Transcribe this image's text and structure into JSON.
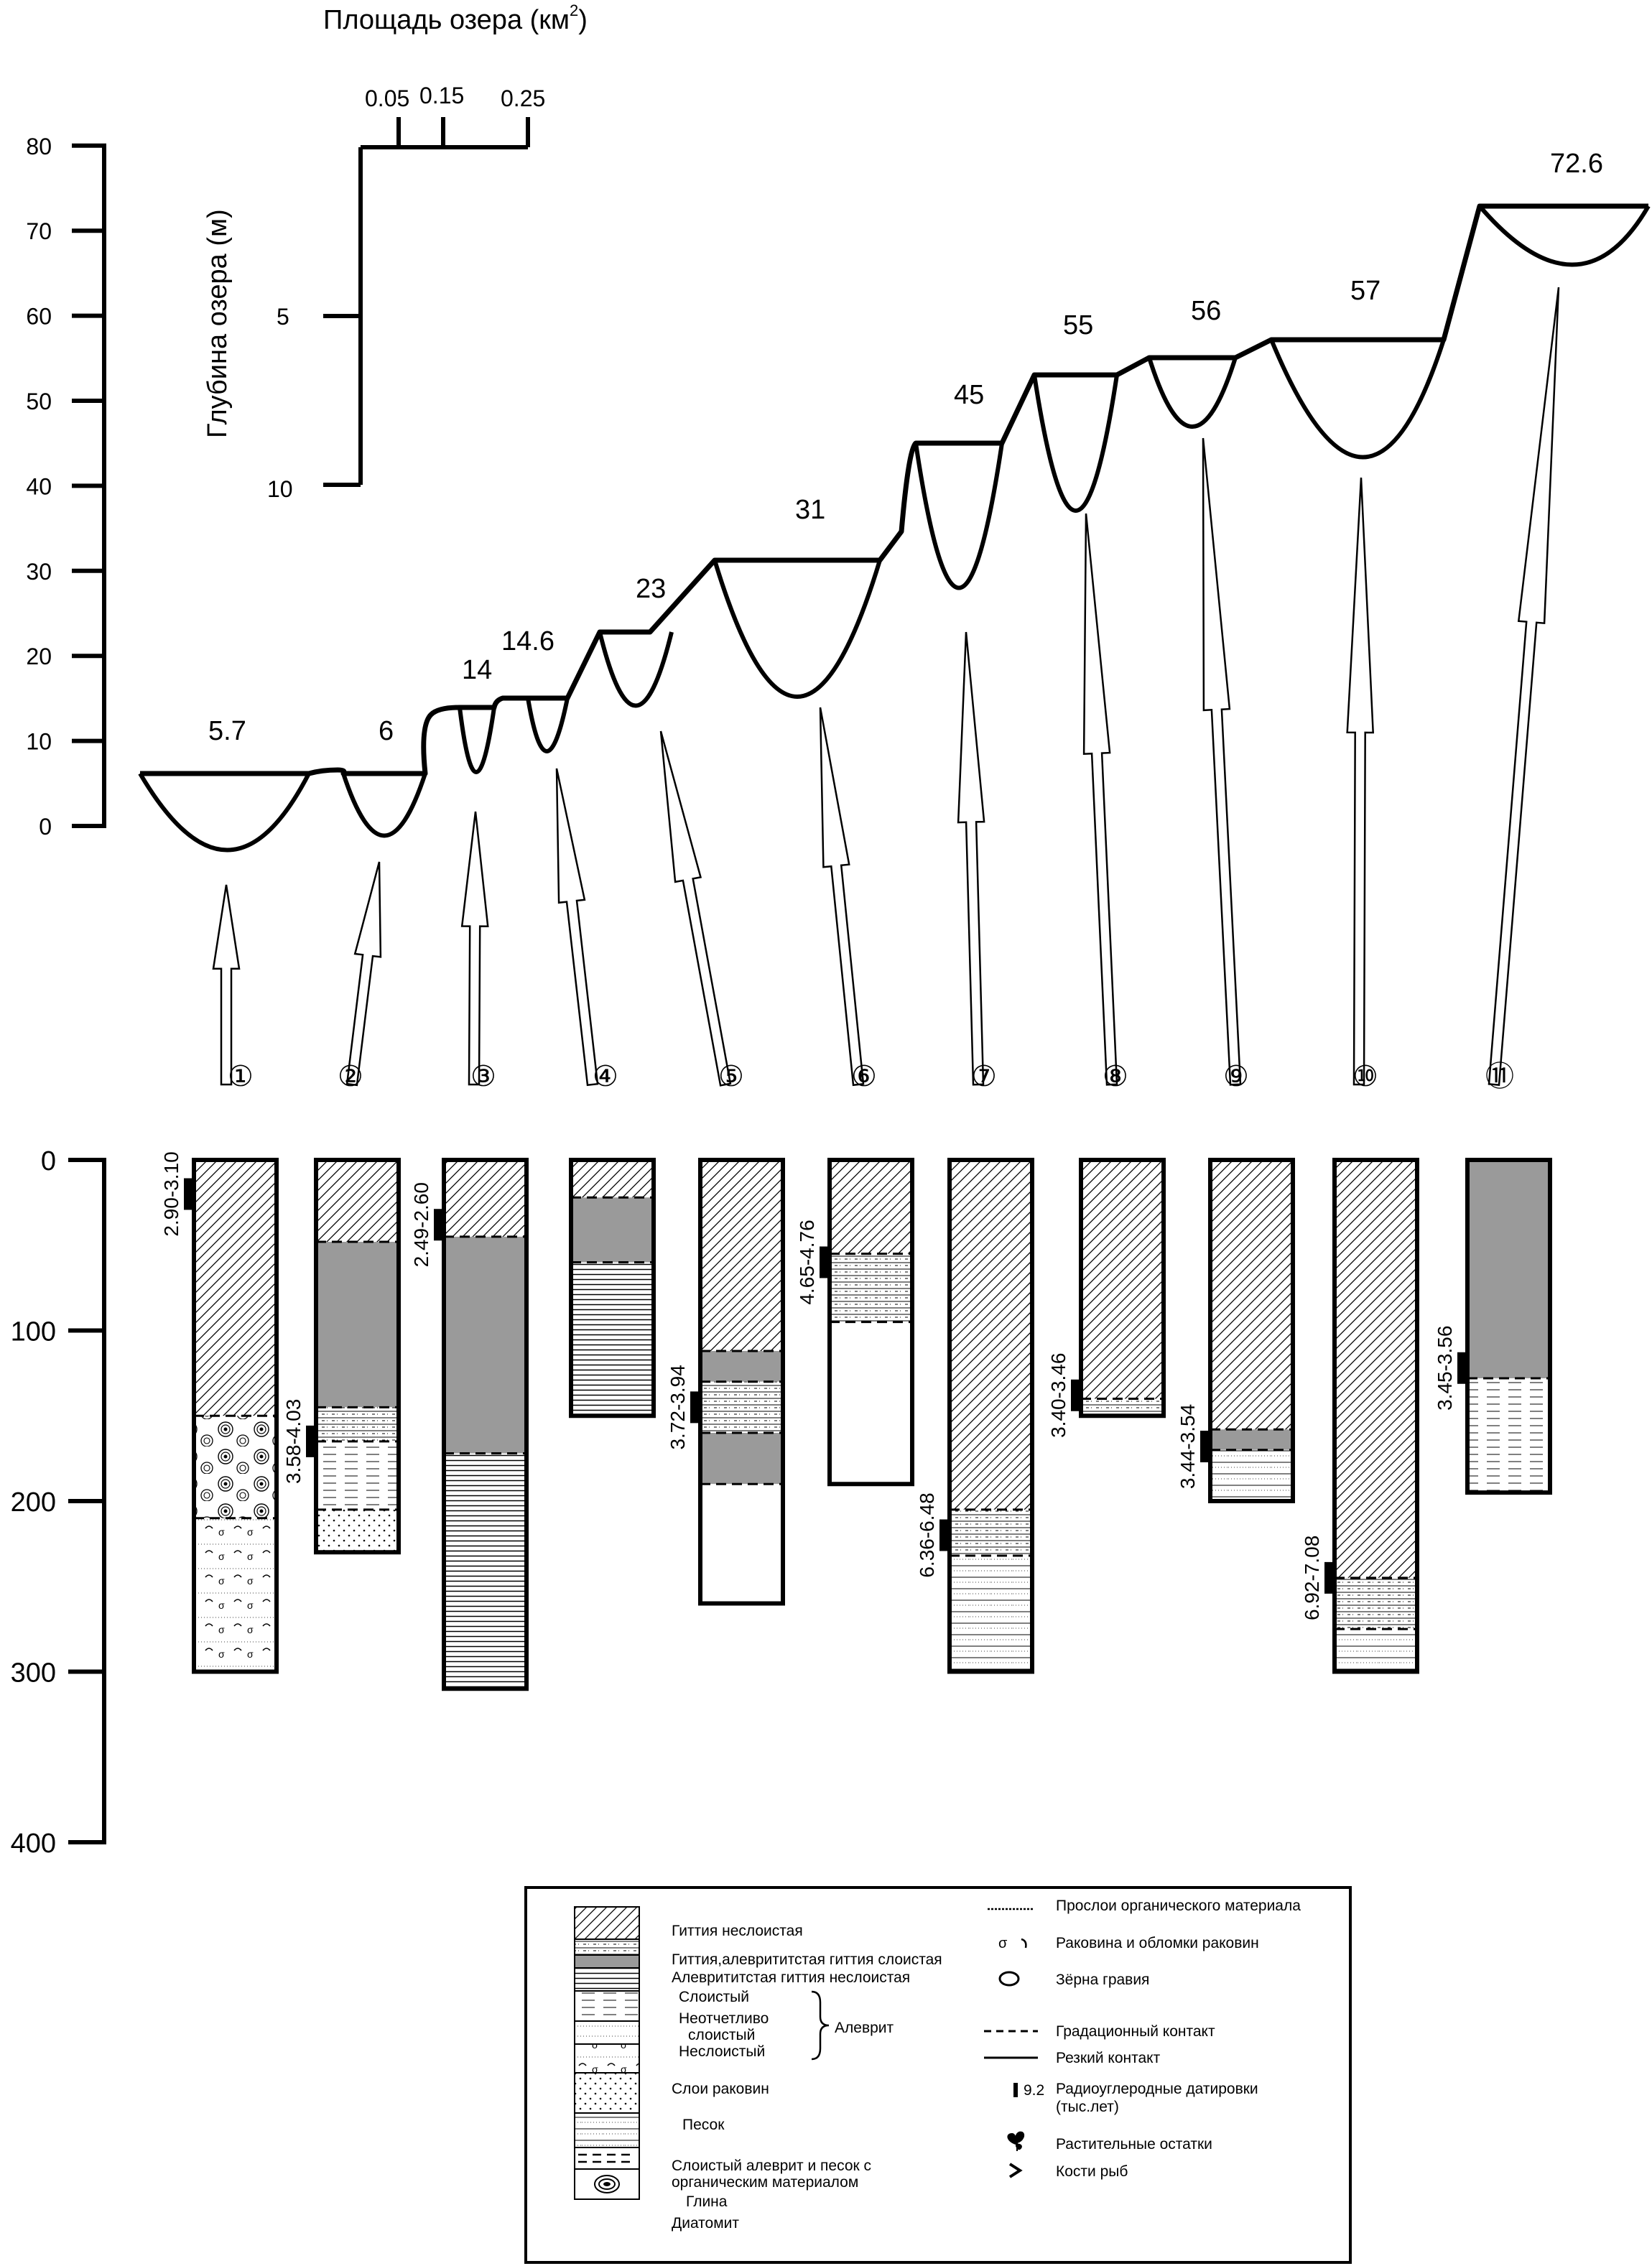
{
  "area_axis": {
    "title": "Площадь озера (км",
    "title_sup": "2",
    "title_end": ")",
    "ticks": [
      "0.05",
      "0.15",
      "0.25"
    ]
  },
  "depth_axis": {
    "title": "Глубина озера (м)",
    "ticks": [
      "5",
      "10"
    ]
  },
  "elevation_axis": {
    "ticks": [
      "0",
      "10",
      "20",
      "30",
      "40",
      "50",
      "60",
      "70",
      "80"
    ]
  },
  "core_axis": {
    "ticks": [
      "0",
      "100",
      "200",
      "300",
      "400"
    ]
  },
  "lakes": [
    {
      "num": "1",
      "elevation": "5.7",
      "depth_level": 0
    },
    {
      "num": "2",
      "elevation": "6",
      "depth_level": 1
    },
    {
      "num": "3",
      "elevation": "14",
      "depth_level": 2
    },
    {
      "num": "4",
      "elevation": "14.6",
      "depth_level": 3
    },
    {
      "num": "5",
      "elevation": "23",
      "depth_level": 4
    },
    {
      "num": "6",
      "elevation": "31",
      "depth_level": 5
    },
    {
      "num": "7",
      "elevation": "45",
      "depth_level": 6
    },
    {
      "num": "8",
      "elevation": "55",
      "depth_level": 7
    },
    {
      "num": "9",
      "elevation": "56",
      "depth_level": 8
    },
    {
      "num": "10",
      "elevation": "57",
      "depth_level": 9
    },
    {
      "num": "11",
      "elevation": "72.6",
      "depth_level": 10
    }
  ],
  "core_numbers": [
    "①",
    "②",
    "③",
    "④",
    "⑤",
    "⑥",
    "⑦",
    "⑧",
    "⑨",
    "⑩",
    "⑪"
  ],
  "cores": [
    {
      "id": "1",
      "base_cm": 300,
      "dates": [
        {
          "text": "2.90-3.10",
          "depth_cm": 20
        }
      ]
    },
    {
      "id": "2",
      "base_cm": 230,
      "dates": [
        {
          "text": "3.58-4.03",
          "depth_cm": 165
        }
      ]
    },
    {
      "id": "3",
      "base_cm": 310,
      "dates": [
        {
          "text": "2.49-2.60",
          "depth_cm": 38
        }
      ]
    },
    {
      "id": "4",
      "base_cm": 150,
      "dates": []
    },
    {
      "id": "5",
      "base_cm": 260,
      "dates": [
        {
          "text": "3.72-3.94",
          "depth_cm": 145
        }
      ]
    },
    {
      "id": "6",
      "base_cm": 190,
      "dates": [
        {
          "text": "4.65-4.76",
          "depth_cm": 60
        }
      ]
    },
    {
      "id": "7",
      "base_cm": 300,
      "dates": [
        {
          "text": "6.36-6.48",
          "depth_cm": 220
        }
      ]
    },
    {
      "id": "8",
      "base_cm": 150,
      "dates": [
        {
          "text": "3.40-3.46",
          "depth_cm": 138
        }
      ]
    },
    {
      "id": "9",
      "base_cm": 200,
      "dates": [
        {
          "text": "3.44-3.54",
          "depth_cm": 168
        }
      ]
    },
    {
      "id": "10",
      "base_cm": 300,
      "dates": [
        {
          "text": "6.92-7.08",
          "depth_cm": 245
        }
      ]
    },
    {
      "id": "11",
      "base_cm": 195,
      "dates": [
        {
          "text": "3.45-3.56",
          "depth_cm": 122
        }
      ]
    }
  ],
  "legend": {
    "left": [
      "Гиттия неслоистая",
      "Гиттия,алеврититстая гиттия слоистая",
      "Алеврититстая гиттия неслоистая",
      "Слоистый",
      "Неотчетливо",
      "слоистый",
      "Неслоистый",
      "Алеврит",
      "Слои раковин",
      "Песок",
      "Слоистый алеврит и песок с",
      "органическим материалом",
      "Глина",
      "Диатомит"
    ],
    "right": [
      "Прослои органического материала",
      "Раковина и обломки раковин",
      "Зёрна гравия",
      "Градационный контакт",
      "Резкий контакт",
      "Радиоуглеродные датировки",
      "(тыс.лет)",
      "9.2",
      "Растительные остатки",
      "Кости рыб"
    ]
  }
}
